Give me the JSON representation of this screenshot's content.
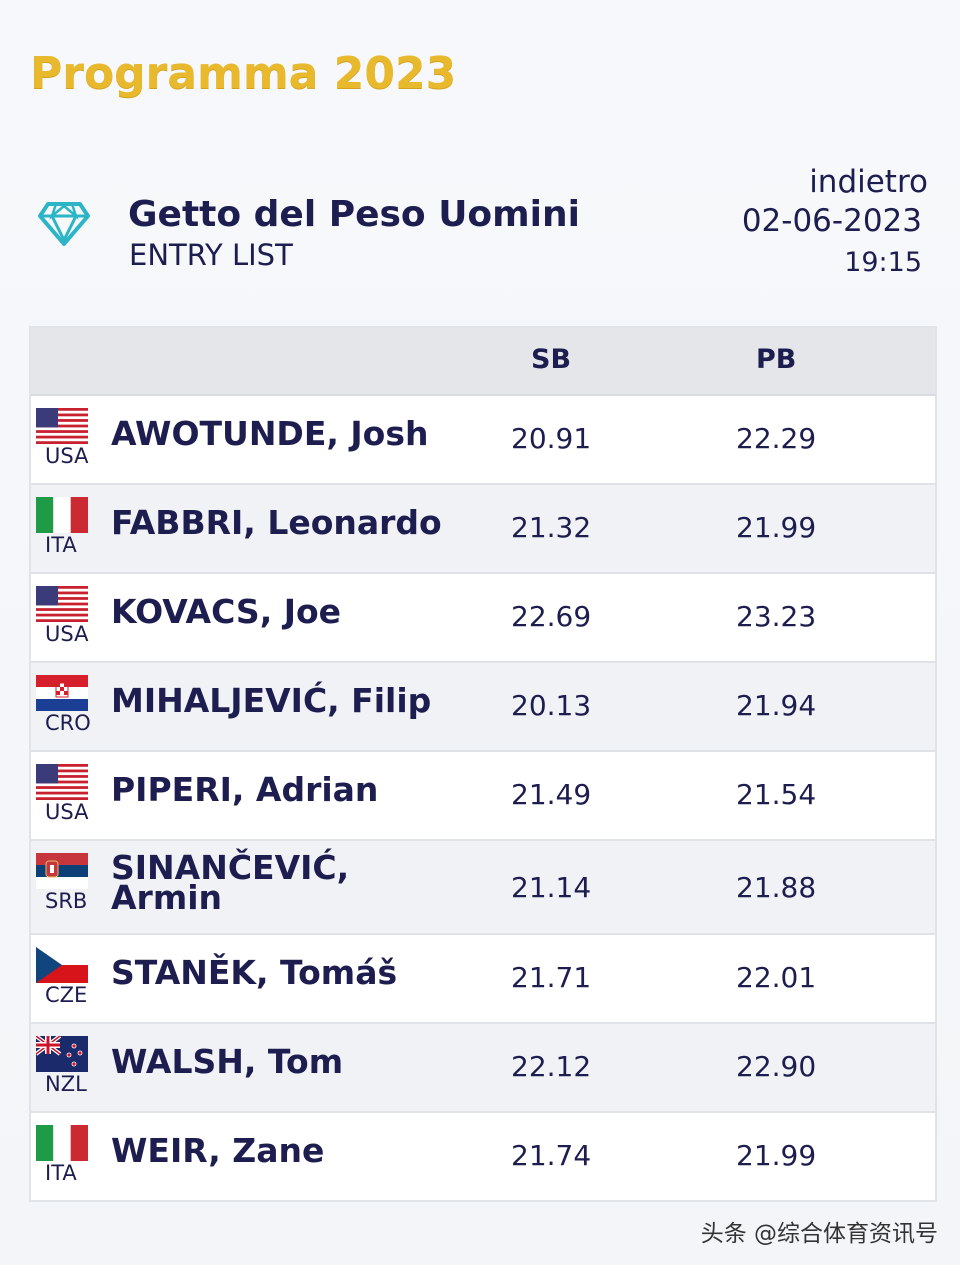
{
  "page": {
    "title": "Programma 2023"
  },
  "event": {
    "name": "Getto del Peso Uomini",
    "subtitle": "ENTRY LIST",
    "back_label": "indietro",
    "date": "02-06-2023",
    "time": "19:15",
    "icon": "diamond-icon"
  },
  "table": {
    "headers": {
      "sb": "SB",
      "pb": "PB"
    },
    "rows": [
      {
        "country": "USA",
        "flag": "usa",
        "name": "AWOTUNDE, Josh",
        "sb": "20.91",
        "pb": "22.29"
      },
      {
        "country": "ITA",
        "flag": "ita",
        "name": "FABBRI, Leonardo",
        "sb": "21.32",
        "pb": "21.99"
      },
      {
        "country": "USA",
        "flag": "usa",
        "name": "KOVACS, Joe",
        "sb": "22.69",
        "pb": "23.23"
      },
      {
        "country": "CRO",
        "flag": "cro",
        "name": "MIHALJEVIĆ, Filip",
        "sb": "20.13",
        "pb": "21.94"
      },
      {
        "country": "USA",
        "flag": "usa",
        "name": "PIPERI, Adrian",
        "sb": "21.49",
        "pb": "21.54"
      },
      {
        "country": "SRB",
        "flag": "srb",
        "name": "SINANČEVIĆ, Armin",
        "sb": "21.14",
        "pb": "21.88"
      },
      {
        "country": "CZE",
        "flag": "cze",
        "name": "STANĚK, Tomáš",
        "sb": "21.71",
        "pb": "22.01"
      },
      {
        "country": "NZL",
        "flag": "nzl",
        "name": "WALSH, Tom",
        "sb": "22.12",
        "pb": "22.90"
      },
      {
        "country": "ITA",
        "flag": "ita",
        "name": "WEIR, Zane",
        "sb": "21.74",
        "pb": "21.99"
      }
    ]
  },
  "watermark": "头条 @综合体育资讯号",
  "colors": {
    "title_gold": "#e8b92c",
    "navy": "#1d1d4f",
    "diamond": "#2bb5c7"
  }
}
